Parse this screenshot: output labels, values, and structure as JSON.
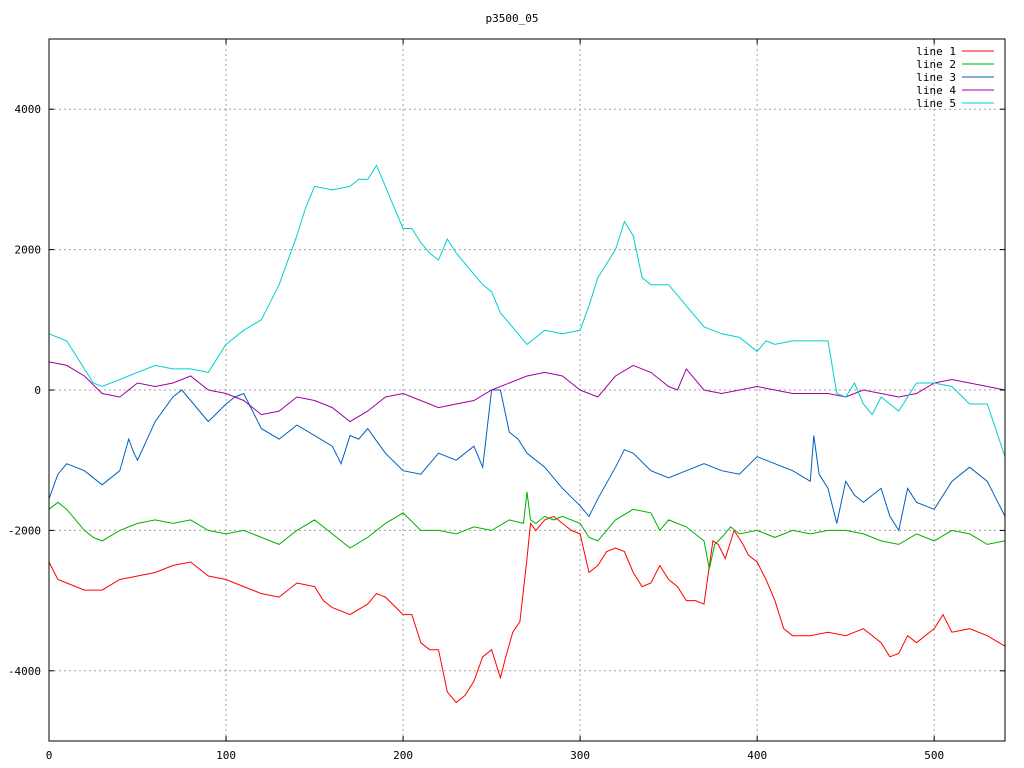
{
  "chart_data": {
    "type": "line",
    "title": "p3500_05",
    "xlabel": "",
    "ylabel": "",
    "xlim": [
      0,
      540
    ],
    "ylim": [
      -5000,
      5000
    ],
    "xticks": [
      0,
      100,
      200,
      300,
      400,
      500
    ],
    "yticks": [
      -4000,
      -2000,
      0,
      2000,
      4000
    ],
    "grid": true,
    "legend_position": "top-right",
    "series": [
      {
        "name": "line 1",
        "color": "#ff0000",
        "x": [
          0,
          5,
          10,
          20,
          30,
          40,
          50,
          60,
          70,
          80,
          90,
          100,
          110,
          120,
          130,
          140,
          150,
          155,
          160,
          170,
          180,
          185,
          190,
          200,
          205,
          210,
          215,
          220,
          225,
          230,
          235,
          240,
          245,
          250,
          255,
          258,
          262,
          266,
          270,
          272,
          275,
          280,
          285,
          290,
          295,
          300,
          305,
          310,
          315,
          320,
          325,
          330,
          335,
          340,
          345,
          350,
          355,
          360,
          365,
          370,
          375,
          378,
          382,
          387,
          392,
          395,
          400,
          405,
          410,
          415,
          420,
          430,
          440,
          450,
          460,
          470,
          475,
          480,
          485,
          490,
          500,
          505,
          510,
          520,
          530,
          540
        ],
        "y": [
          -2450,
          -2700,
          -2750,
          -2850,
          -2850,
          -2700,
          -2650,
          -2600,
          -2500,
          -2450,
          -2650,
          -2700,
          -2800,
          -2900,
          -2950,
          -2750,
          -2800,
          -3000,
          -3100,
          -3200,
          -3050,
          -2900,
          -2950,
          -3200,
          -3200,
          -3600,
          -3700,
          -3700,
          -4300,
          -4450,
          -4350,
          -4150,
          -3800,
          -3700,
          -4100,
          -3800,
          -3450,
          -3300,
          -2400,
          -1900,
          -2000,
          -1850,
          -1800,
          -1900,
          -2000,
          -2050,
          -2600,
          -2500,
          -2300,
          -2250,
          -2300,
          -2600,
          -2800,
          -2750,
          -2500,
          -2700,
          -2800,
          -3000,
          -3000,
          -3050,
          -2150,
          -2200,
          -2400,
          -2000,
          -2200,
          -2350,
          -2450,
          -2700,
          -3000,
          -3400,
          -3500,
          -3500,
          -3450,
          -3500,
          -3400,
          -3600,
          -3800,
          -3750,
          -3500,
          -3600,
          -3400,
          -3200,
          -3450,
          -3400,
          -3500,
          -3650
        ]
      },
      {
        "name": "line 2",
        "color": "#00b000",
        "x": [
          0,
          5,
          10,
          15,
          20,
          25,
          30,
          40,
          45,
          50,
          60,
          70,
          80,
          90,
          100,
          110,
          120,
          130,
          140,
          150,
          160,
          170,
          180,
          190,
          200,
          210,
          220,
          230,
          240,
          250,
          260,
          268,
          270,
          272,
          275,
          280,
          285,
          290,
          300,
          305,
          310,
          320,
          330,
          340,
          345,
          350,
          360,
          370,
          373,
          376,
          380,
          385,
          390,
          400,
          410,
          420,
          430,
          440,
          450,
          460,
          470,
          480,
          490,
          500,
          510,
          520,
          530,
          540
        ],
        "y": [
          -1700,
          -1600,
          -1700,
          -1850,
          -2000,
          -2100,
          -2150,
          -2000,
          -1950,
          -1900,
          -1850,
          -1900,
          -1850,
          -2000,
          -2050,
          -2000,
          -2100,
          -2200,
          -2000,
          -1850,
          -2050,
          -2250,
          -2100,
          -1900,
          -1750,
          -2000,
          -2000,
          -2050,
          -1950,
          -2000,
          -1850,
          -1900,
          -1450,
          -1850,
          -1900,
          -1800,
          -1850,
          -1800,
          -1900,
          -2100,
          -2150,
          -1850,
          -1700,
          -1750,
          -2000,
          -1850,
          -1950,
          -2150,
          -2550,
          -2200,
          -2100,
          -1950,
          -2050,
          -2000,
          -2100,
          -2000,
          -2050,
          -2000,
          -2000,
          -2050,
          -2150,
          -2200,
          -2050,
          -2150,
          -2000,
          -2050,
          -2200,
          -2150
        ]
      },
      {
        "name": "line 3",
        "color": "#0060c0",
        "x": [
          0,
          5,
          10,
          20,
          30,
          40,
          45,
          48,
          50,
          60,
          70,
          75,
          80,
          90,
          100,
          105,
          110,
          120,
          130,
          140,
          150,
          160,
          165,
          170,
          175,
          180,
          190,
          200,
          210,
          220,
          230,
          240,
          245,
          250,
          255,
          260,
          265,
          270,
          280,
          290,
          300,
          305,
          310,
          320,
          325,
          330,
          340,
          350,
          360,
          370,
          380,
          390,
          400,
          410,
          420,
          430,
          432,
          435,
          440,
          445,
          450,
          455,
          460,
          470,
          475,
          480,
          485,
          490,
          500,
          510,
          520,
          530,
          535,
          540
        ],
        "y": [
          -1550,
          -1200,
          -1050,
          -1150,
          -1350,
          -1150,
          -700,
          -900,
          -1000,
          -450,
          -100,
          0,
          -150,
          -450,
          -200,
          -100,
          -50,
          -550,
          -700,
          -500,
          -650,
          -800,
          -1050,
          -650,
          -700,
          -550,
          -900,
          -1150,
          -1200,
          -900,
          -1000,
          -800,
          -1100,
          0,
          0,
          -600,
          -700,
          -900,
          -1100,
          -1400,
          -1650,
          -1800,
          -1550,
          -1100,
          -850,
          -900,
          -1150,
          -1250,
          -1150,
          -1050,
          -1150,
          -1200,
          -950,
          -1050,
          -1150,
          -1300,
          -650,
          -1200,
          -1400,
          -1900,
          -1300,
          -1500,
          -1600,
          -1400,
          -1800,
          -2000,
          -1400,
          -1600,
          -1700,
          -1300,
          -1100,
          -1300,
          -1550,
          -1800
        ]
      },
      {
        "name": "line 4",
        "color": "#a000a0",
        "x": [
          0,
          10,
          20,
          30,
          40,
          50,
          60,
          70,
          75,
          80,
          90,
          100,
          110,
          120,
          130,
          140,
          150,
          160,
          170,
          180,
          190,
          200,
          210,
          220,
          230,
          240,
          250,
          260,
          270,
          280,
          290,
          300,
          310,
          320,
          330,
          340,
          350,
          355,
          360,
          370,
          380,
          390,
          400,
          410,
          420,
          430,
          440,
          450,
          460,
          470,
          480,
          490,
          500,
          510,
          520,
          530,
          540
        ],
        "y": [
          400,
          350,
          200,
          -50,
          -100,
          100,
          50,
          100,
          150,
          200,
          0,
          -50,
          -150,
          -350,
          -300,
          -100,
          -150,
          -250,
          -450,
          -300,
          -100,
          -50,
          -150,
          -250,
          -200,
          -150,
          0,
          100,
          200,
          250,
          200,
          0,
          -100,
          200,
          350,
          250,
          50,
          0,
          300,
          0,
          -50,
          0,
          50,
          0,
          -50,
          -50,
          -50,
          -100,
          0,
          -50,
          -100,
          -50,
          100,
          150,
          100,
          50,
          0
        ]
      },
      {
        "name": "line 5",
        "color": "#00d0d0",
        "x": [
          0,
          5,
          10,
          15,
          20,
          25,
          30,
          40,
          50,
          60,
          70,
          80,
          90,
          100,
          110,
          120,
          130,
          140,
          145,
          150,
          160,
          170,
          175,
          180,
          185,
          190,
          195,
          200,
          205,
          210,
          215,
          220,
          225,
          230,
          235,
          240,
          245,
          250,
          255,
          260,
          265,
          270,
          275,
          280,
          290,
          300,
          305,
          310,
          315,
          320,
          325,
          330,
          335,
          340,
          350,
          360,
          370,
          380,
          390,
          400,
          405,
          410,
          420,
          430,
          440,
          445,
          450,
          455,
          460,
          465,
          470,
          480,
          490,
          500,
          510,
          520,
          530,
          540
        ],
        "y": [
          800,
          750,
          700,
          500,
          300,
          100,
          50,
          150,
          250,
          350,
          300,
          300,
          250,
          650,
          850,
          1000,
          1500,
          2200,
          2600,
          2900,
          2850,
          2900,
          3000,
          3000,
          3200,
          2900,
          2600,
          2300,
          2300,
          2100,
          1950,
          1850,
          2150,
          1950,
          1800,
          1650,
          1500,
          1400,
          1100,
          950,
          800,
          650,
          750,
          850,
          800,
          850,
          1200,
          1600,
          1800,
          2000,
          2400,
          2200,
          1600,
          1500,
          1500,
          1200,
          900,
          800,
          750,
          550,
          700,
          650,
          700,
          700,
          700,
          -50,
          -100,
          100,
          -200,
          -350,
          -100,
          -300,
          100,
          100,
          50,
          -200,
          -200,
          -950
        ]
      }
    ]
  }
}
